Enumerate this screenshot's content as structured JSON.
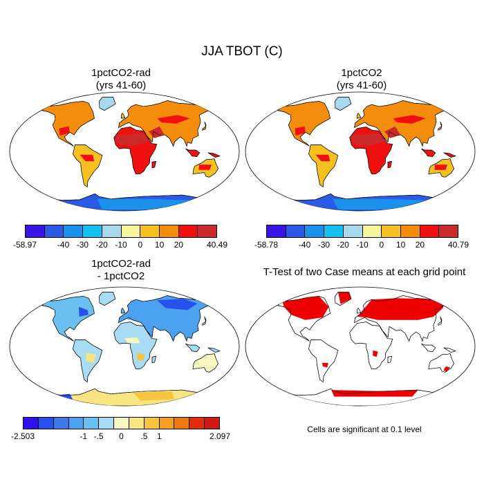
{
  "title": "JJA TBOT (C)",
  "panels": {
    "top_left": {
      "title_line1": "1pctCO2-rad",
      "title_line2": "(yrs 41-60)",
      "colorbar": {
        "colors": [
          "#3a14e6",
          "#2a5ae6",
          "#1a92ec",
          "#14c0f0",
          "#a6d8ee",
          "#f8f49c",
          "#f6c020",
          "#f48c0c",
          "#f01010",
          "#cc2a2a"
        ],
        "labels": [
          "-58.97",
          "-40",
          "-30",
          "-20",
          "-10",
          "0",
          "10",
          "20",
          "40.49"
        ]
      }
    },
    "top_right": {
      "title_line1": "1pctCO2",
      "title_line2": "(yrs 41-60)",
      "colorbar": {
        "colors": [
          "#3a14e6",
          "#2a5ae6",
          "#1a92ec",
          "#14c0f0",
          "#a6d8ee",
          "#f8f49c",
          "#f6c020",
          "#f48c0c",
          "#f01010",
          "#cc2a2a"
        ],
        "labels": [
          "-58.78",
          "-40",
          "-30",
          "-20",
          "-10",
          "0",
          "10",
          "20",
          "40.79"
        ]
      }
    },
    "bottom_left": {
      "title_line1": "1pctCO2-rad",
      "title_line2": "- 1pctCO2",
      "colorbar": {
        "colors": [
          "#3010ee",
          "#2850ec",
          "#3c7aec",
          "#4aa2f0",
          "#6ac0f0",
          "#a8dcf4",
          "#f6f6c0",
          "#f8e480",
          "#f8c440",
          "#f4a020",
          "#f07810",
          "#e42c0c",
          "#d01818"
        ],
        "labels": [
          "-2.503",
          "-1",
          "-.5",
          "0",
          ".5",
          "1",
          "2.097"
        ]
      }
    },
    "bottom_right": {
      "title": "T-Test of two Case means at each grid point",
      "note": "Cells are significant at 0.1 level",
      "significant_color": "#ee0000"
    }
  }
}
